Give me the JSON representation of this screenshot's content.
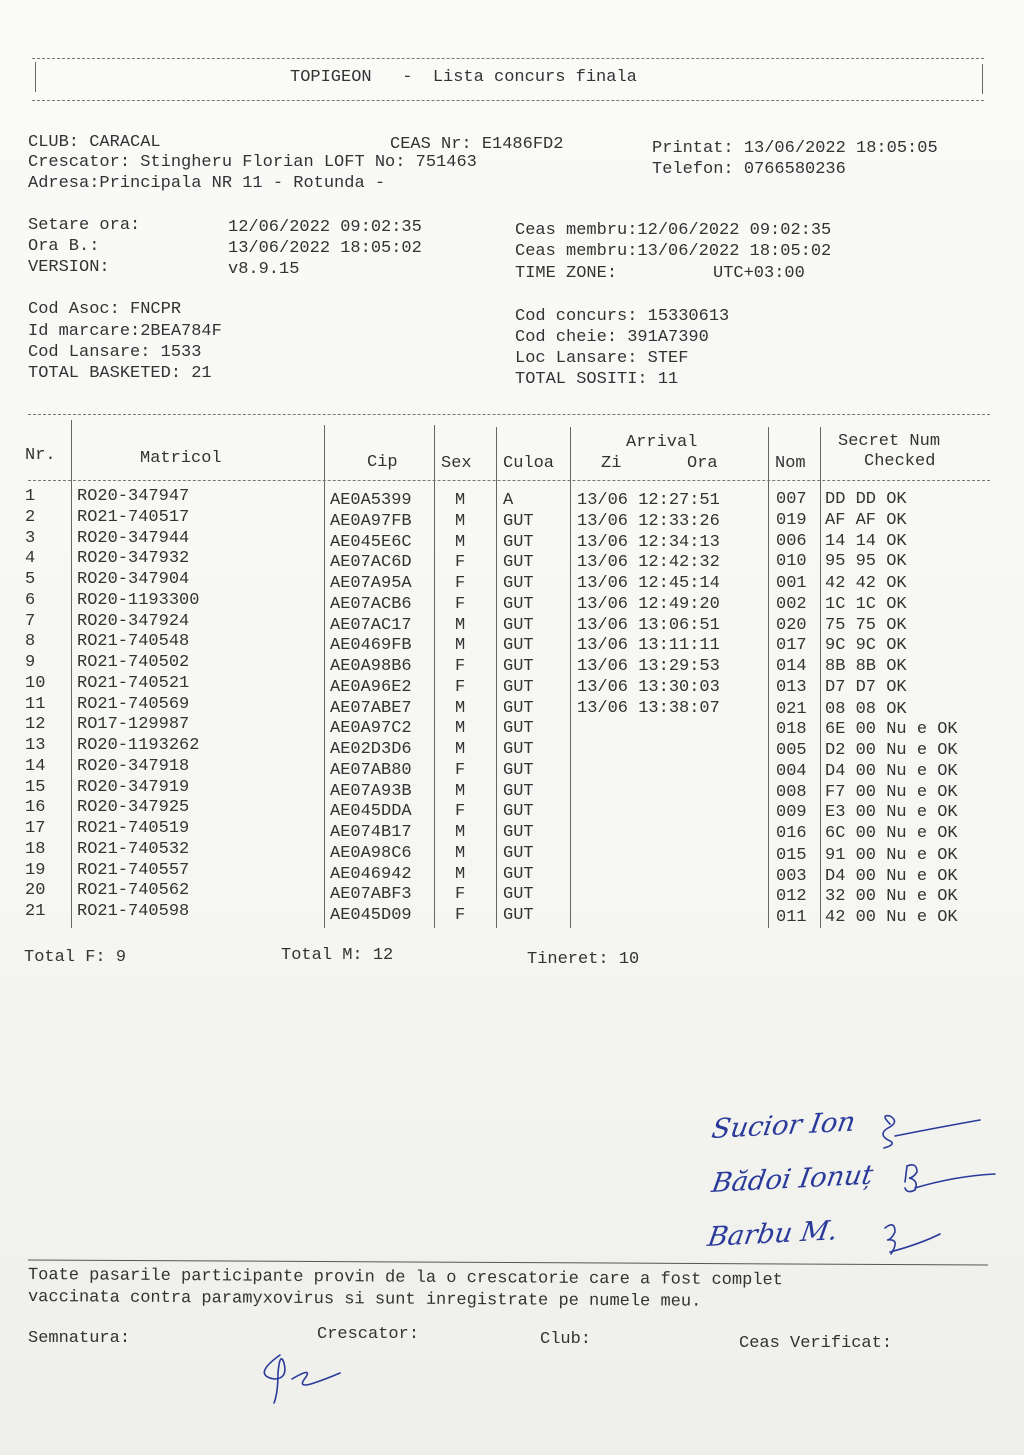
{
  "title": "TOPIGEON   -  Lista concurs finala",
  "header": {
    "club": "CLUB: CARACAL",
    "ceas_nr": "CEAS Nr: E1486FD2",
    "printat": "Printat: 13/06/2022 18:05:05",
    "crescator": "Crescator: Stingheru Florian LOFT No: 751463",
    "telefon": "Telefon: 0766580236",
    "adresa": "Adresa:Principala NR 11 - Rotunda -",
    "setare_ora_label": "Setare ora:",
    "setare_ora": "12/06/2022 09:02:35",
    "ora_b_label": "Ora B.:",
    "ora_b": "13/06/2022 18:05:02",
    "version_label": "VERSION:",
    "version": "v8.9.15",
    "ceas_membru_1": "Ceas membru:12/06/2022 09:02:35",
    "ceas_membru_2": "Ceas membru:13/06/2022 18:05:02",
    "time_zone_label": "TIME ZONE:",
    "time_zone": "UTC+03:00",
    "cod_asoc": "Cod Asoc: FNCPR",
    "id_marcare": "Id marcare:2BEA784F",
    "cod_lansare": "Cod Lansare: 1533",
    "total_basketed": "TOTAL BASKETED: 21",
    "cod_concurs": "Cod concurs: 15330613",
    "cod_cheie": "Cod cheie: 391A7390",
    "loc_lansare": "Loc Lansare: STEF",
    "total_sositi": "TOTAL SOSITI: 11"
  },
  "table": {
    "columns": {
      "nr": "Nr.",
      "matricol": "Matricol",
      "cip": "Cip",
      "sex": "Sex",
      "culoa": "Culoa",
      "arrival": "Arrival",
      "zi": "Zi",
      "ora": "Ora",
      "nom": "Nom",
      "secret": "Secret Num",
      "checked": "Checked"
    },
    "rows": [
      {
        "nr": "1",
        "matricol": "RO20-347947",
        "cip": "AE0A5399",
        "sex": "M",
        "culoa": "A",
        "arrival": "13/06 12:27:51",
        "nom": "007",
        "secret": "DD DD OK"
      },
      {
        "nr": "2",
        "matricol": "RO21-740517",
        "cip": "AE0A97FB",
        "sex": "M",
        "culoa": "GUT",
        "arrival": "13/06 12:33:26",
        "nom": "019",
        "secret": "AF AF OK"
      },
      {
        "nr": "3",
        "matricol": "RO20-347944",
        "cip": "AE045E6C",
        "sex": "M",
        "culoa": "GUT",
        "arrival": "13/06 12:34:13",
        "nom": "006",
        "secret": "14 14 OK"
      },
      {
        "nr": "4",
        "matricol": "RO20-347932",
        "cip": "AE07AC6D",
        "sex": "F",
        "culoa": "GUT",
        "arrival": "13/06 12:42:32",
        "nom": "010",
        "secret": "95 95 OK"
      },
      {
        "nr": "5",
        "matricol": "RO20-347904",
        "cip": "AE07A95A",
        "sex": "F",
        "culoa": "GUT",
        "arrival": "13/06 12:45:14",
        "nom": "001",
        "secret": "42 42 OK"
      },
      {
        "nr": "6",
        "matricol": "RO20-1193300",
        "cip": "AE07ACB6",
        "sex": "F",
        "culoa": "GUT",
        "arrival": "13/06 12:49:20",
        "nom": "002",
        "secret": "1C 1C OK"
      },
      {
        "nr": "7",
        "matricol": "RO20-347924",
        "cip": "AE07AC17",
        "sex": "M",
        "culoa": "GUT",
        "arrival": "13/06 13:06:51",
        "nom": "020",
        "secret": "75 75 OK"
      },
      {
        "nr": "8",
        "matricol": "RO21-740548",
        "cip": "AE0469FB",
        "sex": "M",
        "culoa": "GUT",
        "arrival": "13/06 13:11:11",
        "nom": "017",
        "secret": "9C 9C OK"
      },
      {
        "nr": "9",
        "matricol": "RO21-740502",
        "cip": "AE0A98B6",
        "sex": "F",
        "culoa": "GUT",
        "arrival": "13/06 13:29:53",
        "nom": "014",
        "secret": "8B 8B OK"
      },
      {
        "nr": "10",
        "matricol": "RO21-740521",
        "cip": "AE0A96E2",
        "sex": "F",
        "culoa": "GUT",
        "arrival": "13/06 13:30:03",
        "nom": "013",
        "secret": "D7 D7 OK"
      },
      {
        "nr": "11",
        "matricol": "RO21-740569",
        "cip": "AE07ABE7",
        "sex": "M",
        "culoa": "GUT",
        "arrival": "13/06 13:38:07",
        "nom": "021",
        "secret": "08 08 OK"
      },
      {
        "nr": "12",
        "matricol": "RO17-129987",
        "cip": "AE0A97C2",
        "sex": "M",
        "culoa": "GUT",
        "arrival": "",
        "nom": "018",
        "secret": "6E 00 Nu e OK"
      },
      {
        "nr": "13",
        "matricol": "RO20-1193262",
        "cip": "AE02D3D6",
        "sex": "M",
        "culoa": "GUT",
        "arrival": "",
        "nom": "005",
        "secret": "D2 00 Nu e OK"
      },
      {
        "nr": "14",
        "matricol": "RO20-347918",
        "cip": "AE07AB80",
        "sex": "F",
        "culoa": "GUT",
        "arrival": "",
        "nom": "004",
        "secret": "D4 00 Nu e OK"
      },
      {
        "nr": "15",
        "matricol": "RO20-347919",
        "cip": "AE07A93B",
        "sex": "M",
        "culoa": "GUT",
        "arrival": "",
        "nom": "008",
        "secret": "F7 00 Nu e OK"
      },
      {
        "nr": "16",
        "matricol": "RO20-347925",
        "cip": "AE045DDA",
        "sex": "F",
        "culoa": "GUT",
        "arrival": "",
        "nom": "009",
        "secret": "E3 00 Nu e OK"
      },
      {
        "nr": "17",
        "matricol": "RO21-740519",
        "cip": "AE074B17",
        "sex": "M",
        "culoa": "GUT",
        "arrival": "",
        "nom": "016",
        "secret": "6C 00 Nu e OK"
      },
      {
        "nr": "18",
        "matricol": "RO21-740532",
        "cip": "AE0A98C6",
        "sex": "M",
        "culoa": "GUT",
        "arrival": "",
        "nom": "015",
        "secret": "91 00 Nu e OK"
      },
      {
        "nr": "19",
        "matricol": "RO21-740557",
        "cip": "AE046942",
        "sex": "M",
        "culoa": "GUT",
        "arrival": "",
        "nom": "003",
        "secret": "D4 00 Nu e OK"
      },
      {
        "nr": "20",
        "matricol": "RO21-740562",
        "cip": "AE07ABF3",
        "sex": "F",
        "culoa": "GUT",
        "arrival": "",
        "nom": "012",
        "secret": "32 00 Nu e OK"
      },
      {
        "nr": "21",
        "matricol": "RO21-740598",
        "cip": "AE045D09",
        "sex": "F",
        "culoa": "GUT",
        "arrival": "",
        "nom": "011",
        "secret": "42 00 Nu e OK"
      }
    ]
  },
  "totals": {
    "total_f": "Total F: 9",
    "total_m": "Total M: 12",
    "tineret": "Tineret: 10"
  },
  "handwritten_signatures": [
    "Sucior Ion",
    "Bădoi Ionuț",
    "Barbu M."
  ],
  "declaration": {
    "line1": "Toate pasarile participante provin de la o crescatorie care a fost complet",
    "line2": "vaccinata contra paramyxovirus si sunt inregistrate pe numele meu."
  },
  "footer": {
    "semnatura": "Semnatura:",
    "crescator": "Crescator:",
    "club": "Club:",
    "ceas_verificat": "Ceas Verificat:"
  },
  "colors": {
    "ink": "#333333",
    "signature_ink": "#2a3a9a"
  }
}
